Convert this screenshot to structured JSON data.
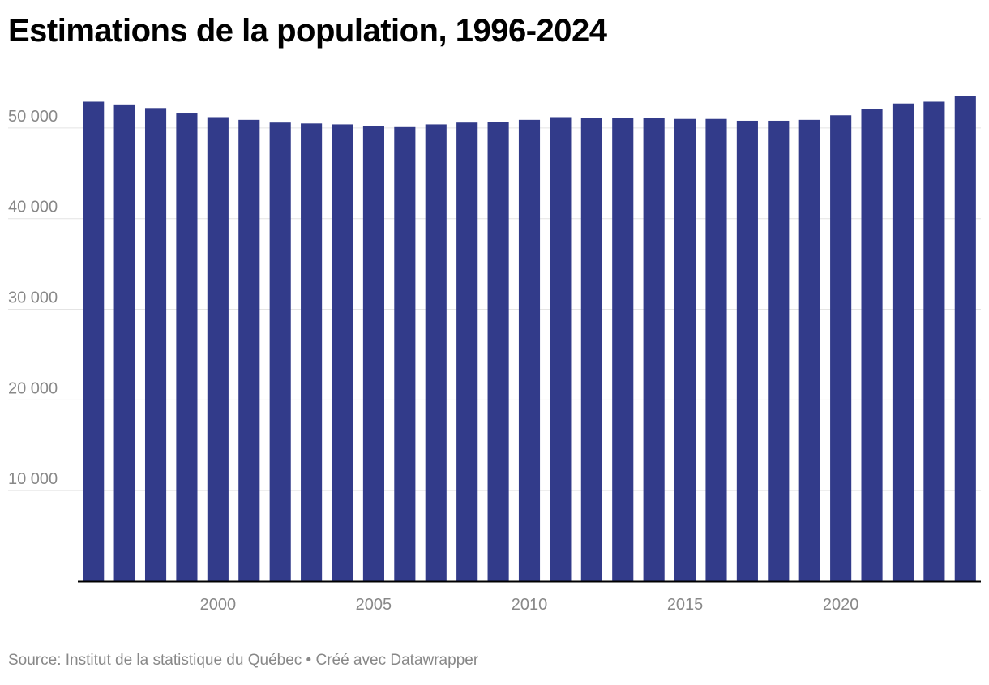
{
  "title": "Estimations de la population, 1996-2024",
  "footer": {
    "source": "Source: Institut de la statistique du Québec",
    "separator": " • ",
    "credit": "Créé avec Datawrapper"
  },
  "colors": {
    "bar": "#323b8a",
    "grid": "#e4e4e4",
    "axis": "#000000",
    "tick_text": "#888888"
  },
  "chart_data": {
    "type": "bar",
    "title": "Estimations de la population, 1996-2024",
    "xlabel": "",
    "ylabel": "",
    "categories": [
      1996,
      1997,
      1998,
      1999,
      2000,
      2001,
      2002,
      2003,
      2004,
      2005,
      2006,
      2007,
      2008,
      2009,
      2010,
      2011,
      2012,
      2013,
      2014,
      2015,
      2016,
      2017,
      2018,
      2019,
      2020,
      2021,
      2022,
      2023,
      2024
    ],
    "values": [
      52900,
      52600,
      52200,
      51600,
      51200,
      50900,
      50600,
      50500,
      50400,
      50200,
      50100,
      50400,
      50600,
      50700,
      50900,
      51200,
      51100,
      51100,
      51100,
      51000,
      51000,
      50800,
      50800,
      50900,
      51400,
      52100,
      52700,
      52900,
      53500
    ],
    "ylim": [
      0,
      55000
    ],
    "y_ticks": [
      10000,
      20000,
      30000,
      40000,
      50000
    ],
    "y_tick_labels": [
      "10 000",
      "20 000",
      "30 000",
      "40 000",
      "50 000"
    ],
    "x_ticks": [
      2000,
      2005,
      2010,
      2015,
      2020
    ],
    "x_tick_labels": [
      "2000",
      "2005",
      "2010",
      "2015",
      "2020"
    ],
    "grid": true,
    "legend": "none"
  }
}
